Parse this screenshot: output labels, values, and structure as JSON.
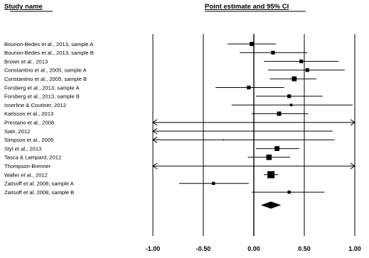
{
  "chart_data": {
    "type": "forest",
    "headers": {
      "study": "Study name",
      "plot": "Point estimate and 95% CI"
    },
    "xlim": [
      -1.0,
      1.0
    ],
    "x_ticks": [
      -1.0,
      -0.5,
      0.0,
      0.5,
      1.0
    ],
    "x_tick_labels": [
      "-1.00",
      "-0.50",
      "0.00",
      "0.50",
      "1.00"
    ],
    "studies": [
      {
        "name": "Bourion-Bedes et al., 2013, sample A",
        "estimate": -0.02,
        "lower": -0.26,
        "upper": 0.22,
        "weight": 5
      },
      {
        "name": "Bourion-Bedes et al., 2013, sample B",
        "estimate": 0.19,
        "lower": -0.14,
        "upper": 0.53,
        "weight": 4
      },
      {
        "name": "Brown et al., 2013",
        "estimate": 0.47,
        "lower": 0.1,
        "upper": 0.84,
        "weight": 4
      },
      {
        "name": "Constantino et al., 2005, sample A",
        "estimate": 0.53,
        "lower": 0.14,
        "upper": 0.9,
        "weight": 4
      },
      {
        "name": "Constantino et al., 2005, sample B",
        "estimate": 0.4,
        "lower": 0.16,
        "upper": 0.62,
        "weight": 6
      },
      {
        "name": "Forsberg et al., 2013, sample A",
        "estimate": -0.05,
        "lower": -0.38,
        "upper": 0.3,
        "weight": 4
      },
      {
        "name": "Forsberg et al., 2013, sample B",
        "estimate": 0.35,
        "lower": 0.02,
        "upper": 0.68,
        "weight": 4
      },
      {
        "name": "Isserline & Coutirier, 2012",
        "estimate": 0.37,
        "lower": -0.22,
        "upper": 0.98,
        "weight": 2
      },
      {
        "name": "Karlsson et al., 2013",
        "estimate": 0.25,
        "lower": -0.02,
        "upper": 0.54,
        "weight": 5
      },
      {
        "name": "Prestano et al., 2008",
        "estimate": 0.0,
        "lower": -1.0,
        "upper": 1.0,
        "weight": 1,
        "arrows": "both"
      },
      {
        "name": "Satir, 2012",
        "estimate": 0.0,
        "lower": -1.0,
        "upper": 0.78,
        "weight": 1,
        "arrows": "left"
      },
      {
        "name": "Simpson et al., 2005",
        "estimate": -0.3,
        "lower": -1.0,
        "upper": 0.8,
        "weight": 1,
        "arrows": "left"
      },
      {
        "name": "Styl et al., 2013",
        "estimate": 0.23,
        "lower": 0.02,
        "upper": 0.45,
        "weight": 6
      },
      {
        "name": "Tasca & Lampard, 2012",
        "estimate": 0.15,
        "lower": -0.06,
        "upper": 0.36,
        "weight": 7
      },
      {
        "name": "Thompson-Brenner",
        "estimate": 0.0,
        "lower": -1.0,
        "upper": 1.0,
        "weight": 1,
        "arrows": "both"
      },
      {
        "name": "Waller et al., 2012",
        "estimate": 0.17,
        "lower": 0.1,
        "upper": 0.24,
        "weight": 10
      },
      {
        "name": "Zaitsoff et al. 2008, sample A",
        "estimate": -0.4,
        "lower": -0.74,
        "upper": -0.05,
        "weight": 3
      },
      {
        "name": "Zaitsoff et al. 2008, sample B",
        "estimate": 0.35,
        "lower": -0.02,
        "upper": 0.7,
        "weight": 3
      }
    ],
    "summary": {
      "estimate": 0.17,
      "lower": 0.07,
      "upper": 0.27
    }
  }
}
